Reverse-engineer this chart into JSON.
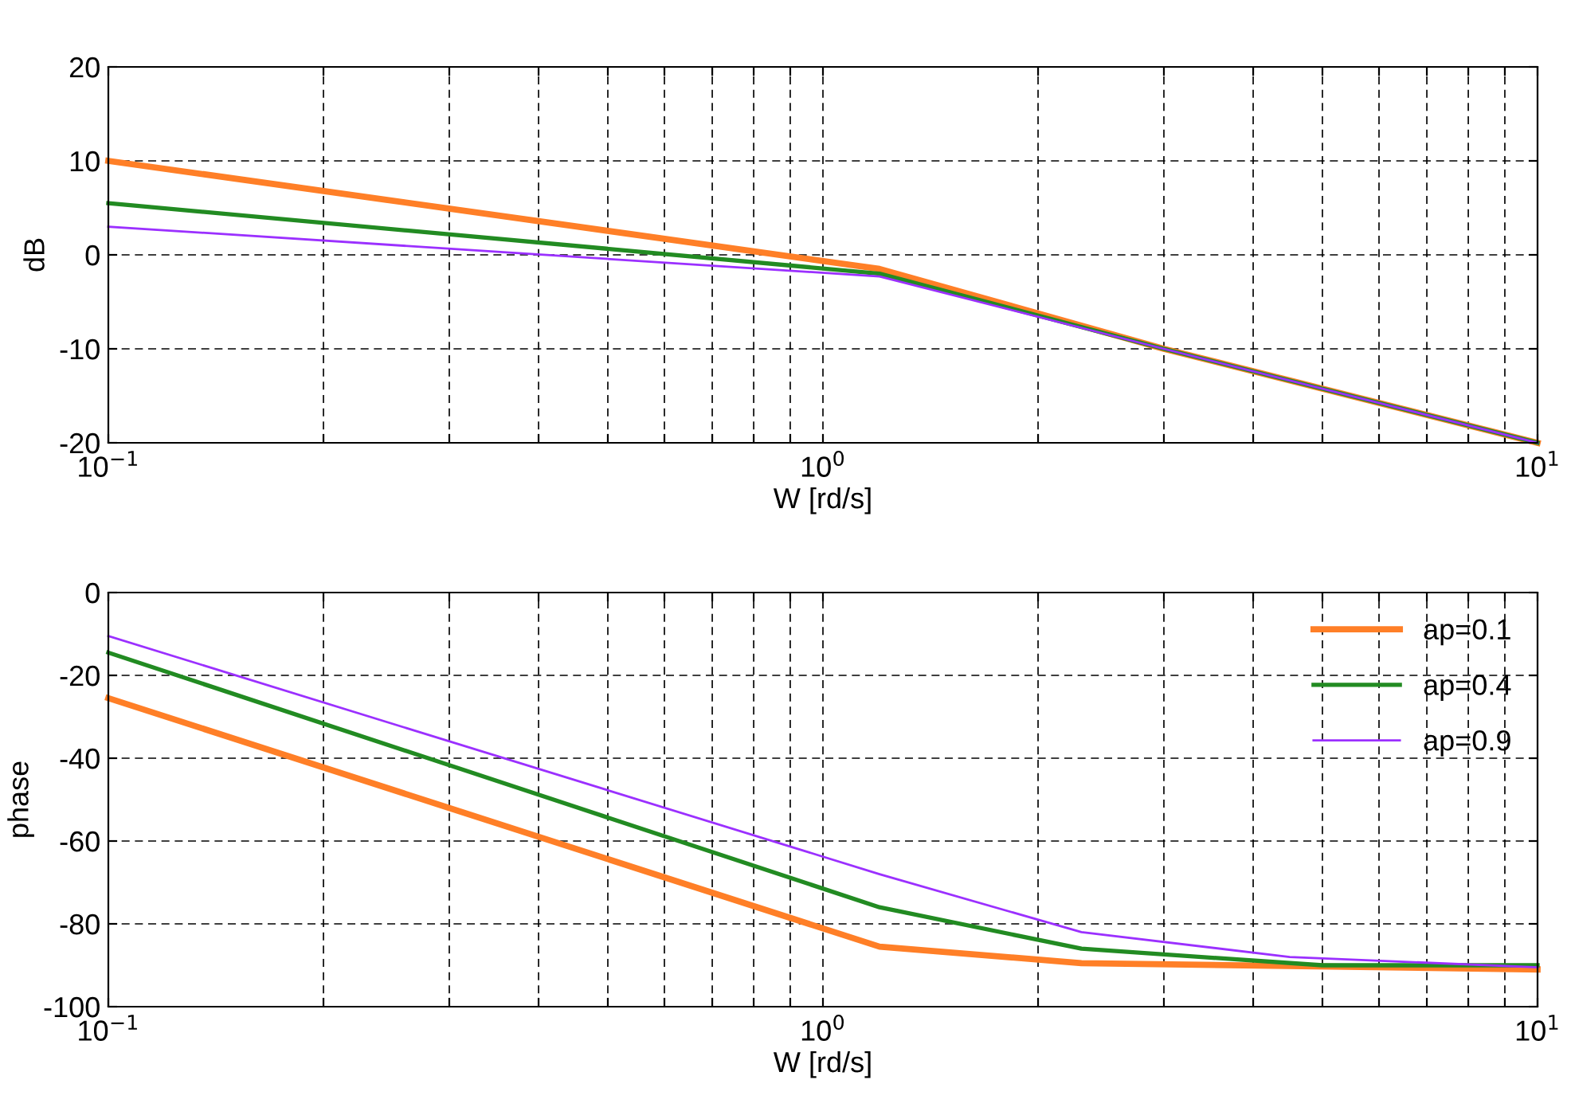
{
  "chart_data": [
    {
      "type": "line",
      "xlabel": "W [rd/s]",
      "ylabel": "dB",
      "log": "x",
      "grid": true,
      "legend": false,
      "marker": "none",
      "line_style": "solid",
      "xlim": [
        0.1,
        10
      ],
      "xticks": [
        {
          "value": 0.1,
          "label": "10$^{−1}$"
        },
        {
          "value": 0.2,
          "label": null
        },
        {
          "value": 0.3,
          "label": null
        },
        {
          "value": 0.4,
          "label": null
        },
        {
          "value": 0.5,
          "label": null
        },
        {
          "value": 0.6,
          "label": null
        },
        {
          "value": 0.7,
          "label": null
        },
        {
          "value": 0.8,
          "label": null
        },
        {
          "value": 0.9,
          "label": null
        },
        {
          "value": 1,
          "label": "10$^{0}$"
        },
        {
          "value": 2,
          "label": null
        },
        {
          "value": 3,
          "label": null
        },
        {
          "value": 4,
          "label": null
        },
        {
          "value": 5,
          "label": null
        },
        {
          "value": 6,
          "label": null
        },
        {
          "value": 7,
          "label": null
        },
        {
          "value": 8,
          "label": null
        },
        {
          "value": 9,
          "label": null
        },
        {
          "value": 10,
          "label": "10$^{1}$"
        }
      ],
      "ylim": [
        -20,
        20
      ],
      "yticks": [
        -20,
        -10,
        0,
        10,
        20
      ],
      "series": [
        {
          "color": "#ff7f27",
          "x": [
            0.1,
            1.2,
            3,
            10
          ],
          "values": [
            10,
            -1.5,
            -10,
            -20
          ]
        },
        {
          "color": "#228b22",
          "x": [
            0.1,
            1.2,
            3,
            10
          ],
          "values": [
            5.5,
            -2,
            -10,
            -20
          ]
        },
        {
          "color": "#9b30ff",
          "x": [
            0.1,
            1.2,
            3,
            10
          ],
          "values": [
            3,
            -2.3,
            -10,
            -20
          ]
        }
      ]
    },
    {
      "type": "line",
      "xlabel": "W [rd/s]",
      "ylabel": "phase",
      "log": "x",
      "grid": true,
      "legend": "top right",
      "marker": "none",
      "line_style": "solid",
      "xlim": [
        0.1,
        10
      ],
      "xticks": [
        {
          "value": 0.1,
          "label": "10$^{−1}$"
        },
        {
          "value": 0.2,
          "label": null
        },
        {
          "value": 0.3,
          "label": null
        },
        {
          "value": 0.4,
          "label": null
        },
        {
          "value": 0.5,
          "label": null
        },
        {
          "value": 0.6,
          "label": null
        },
        {
          "value": 0.7,
          "label": null
        },
        {
          "value": 0.8,
          "label": null
        },
        {
          "value": 0.9,
          "label": null
        },
        {
          "value": 1,
          "label": "10$^{0}$"
        },
        {
          "value": 2,
          "label": null
        },
        {
          "value": 3,
          "label": null
        },
        {
          "value": 4,
          "label": null
        },
        {
          "value": 5,
          "label": null
        },
        {
          "value": 6,
          "label": null
        },
        {
          "value": 7,
          "label": null
        },
        {
          "value": 8,
          "label": null
        },
        {
          "value": 9,
          "label": null
        },
        {
          "value": 10,
          "label": "10$^{1}$"
        }
      ],
      "ylim": [
        -100,
        0
      ],
      "yticks": [
        -100,
        -80,
        -60,
        -40,
        -20,
        0
      ],
      "series": [
        {
          "name": "ap=0.1",
          "color": "#ff7f27",
          "x": [
            0.1,
            1.2,
            2.3,
            10
          ],
          "values": [
            -25.5,
            -85.5,
            -89.5,
            -91
          ]
        },
        {
          "name": "ap=0.4",
          "color": "#228b22",
          "x": [
            0.1,
            1.2,
            2.3,
            5,
            10
          ],
          "values": [
            -14.5,
            -76,
            -86,
            -90,
            -90
          ]
        },
        {
          "name": "ap=0.9",
          "color": "#9b30ff",
          "x": [
            0.1,
            1.2,
            2.3,
            4.5,
            10
          ],
          "values": [
            -10.5,
            -68,
            -82,
            -88,
            -90.5
          ]
        }
      ]
    }
  ]
}
